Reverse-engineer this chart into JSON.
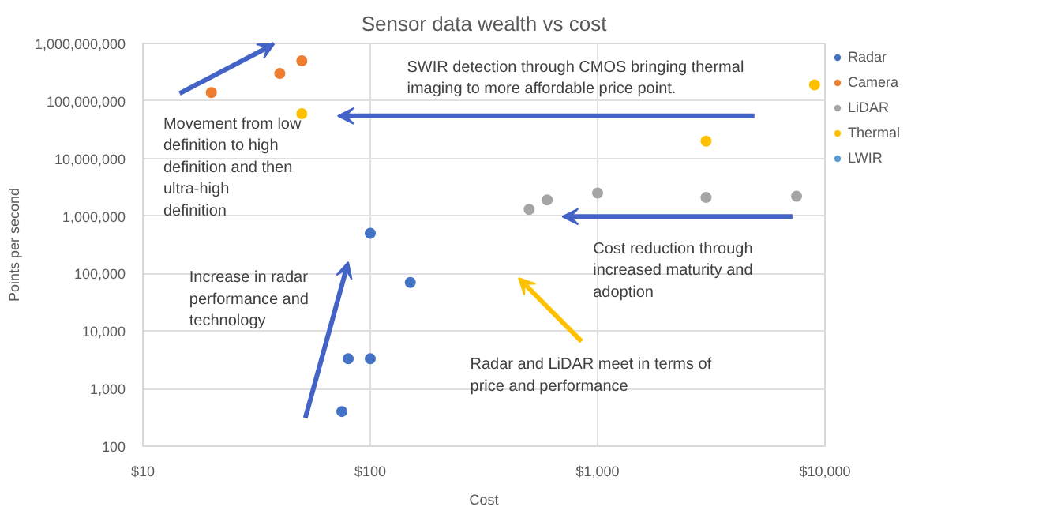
{
  "chart_data": {
    "type": "scatter",
    "title": "Sensor data wealth vs cost",
    "xlabel": "Cost",
    "ylabel": "Points per second",
    "log": "xy",
    "grid": true,
    "legend": "right",
    "marker": "circle",
    "xlim": [
      10,
      10000
    ],
    "xticks": [
      {
        "value": 10,
        "label": "$10"
      },
      {
        "value": 100,
        "label": "$100"
      },
      {
        "value": 1000,
        "label": "$1,000"
      },
      {
        "value": 10000,
        "label": "$10,000"
      }
    ],
    "ylim": [
      100,
      1000000000
    ],
    "yticks": [
      100,
      {
        "value": 1000,
        "label": "1,000"
      },
      {
        "value": 10000,
        "label": "10,000"
      },
      {
        "value": 100000,
        "label": "100,000"
      },
      {
        "value": 1000000,
        "label": "1,000,000"
      },
      {
        "value": 10000000,
        "label": "10,000,000"
      },
      {
        "value": 100000000,
        "label": "100,000,000"
      },
      {
        "value": 1000000000,
        "label": "1,000,000,000"
      }
    ],
    "series": [
      {
        "name": "Radar",
        "color": "#4472c4",
        "x": [
          100,
          150,
          80,
          100,
          75
        ],
        "values": [
          500000,
          70000,
          3300,
          3300,
          400
        ]
      },
      {
        "name": "Camera",
        "color": "#ed7d31",
        "x": [
          20,
          40,
          50
        ],
        "values": [
          140000000,
          300000000,
          500000000
        ]
      },
      {
        "name": "LiDAR",
        "color": "#a5a5a5",
        "x": [
          500,
          600,
          1000,
          3000,
          7500
        ],
        "values": [
          1300000,
          1900000,
          2500000,
          2100000,
          2200000
        ]
      },
      {
        "name": "Thermal",
        "color": "#ffc000",
        "x": [
          50,
          3000,
          9000
        ],
        "values": [
          60000000,
          20000000,
          190000000
        ]
      },
      {
        "name": "LWIR",
        "color": "#5b9bd5"
      }
    ],
    "annotations": [
      "SWIR detection through CMOS bringing thermal imaging to more affordable price point.",
      "Movement from low definition to high definition and then ultra-high definition",
      "Increase in radar performance and technology",
      "Cost reduction through increased maturity and adoption",
      "Radar and LiDAR meet in terms of price and performance"
    ]
  }
}
